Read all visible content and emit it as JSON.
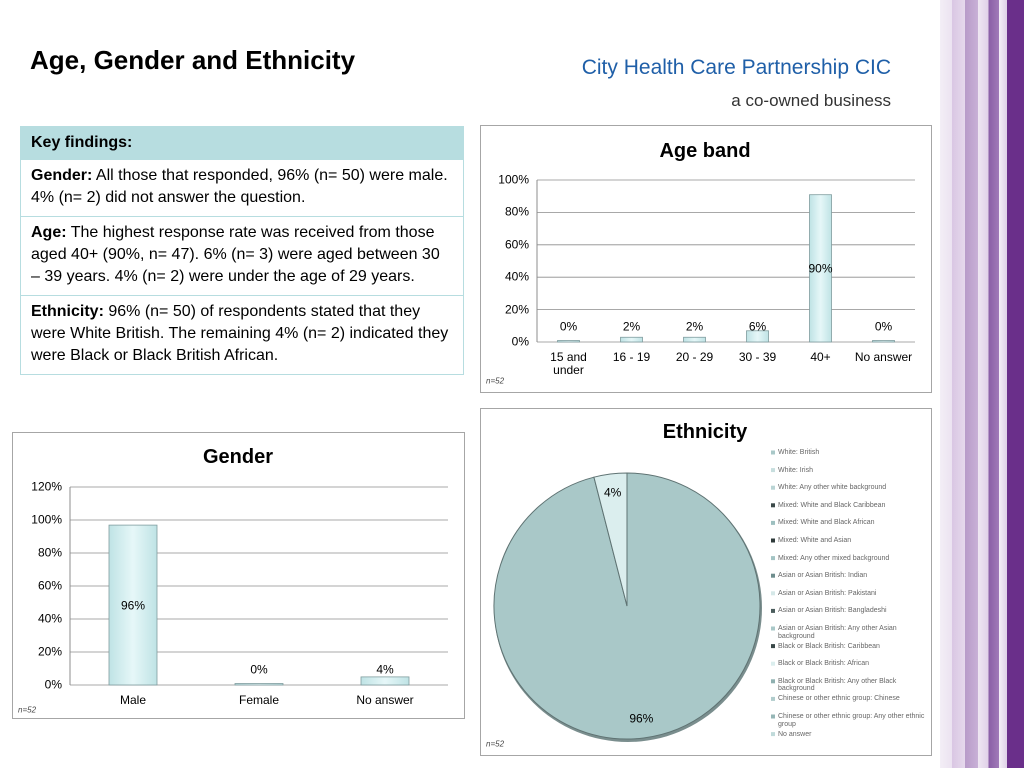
{
  "header": {
    "title": "Age, Gender and Ethnicity",
    "organisation": "City Health Care Partnership CIC",
    "tagline": "a co-owned business"
  },
  "findings": {
    "heading": "Key findings:",
    "items": [
      {
        "label": "Gender:",
        "text": "All those that responded, 96% (n= 50) were male.  4% (n= 2) did not answer the question."
      },
      {
        "label": "Age:",
        "text": "The highest response rate was received from those aged 40+ (90%, n= 47). 6% (n= 3) were aged between 30 – 39 years.  4% (n= 2) were under the age of 29 years."
      },
      {
        "label": "Ethnicity:",
        "text": "96% (n= 50) of respondents stated that they were White British.  The remaining 4% (n= 2) indicated they were Black or Black British African."
      }
    ]
  },
  "chart_data": [
    {
      "type": "bar",
      "title": "Age band",
      "note": "n=52",
      "categories": [
        "15 and under",
        "16 - 19",
        "20 - 29",
        "30 - 39",
        "40+",
        "No answer"
      ],
      "values": [
        0,
        2,
        2,
        6,
        90,
        0
      ],
      "value_labels": [
        "0%",
        "2%",
        "2%",
        "6%",
        "90%",
        "0%"
      ],
      "color": "#d3eff0",
      "ylim": [
        0,
        100
      ],
      "yticks": [
        {
          "value": 0,
          "label": "0%"
        },
        {
          "value": 20,
          "label": "20%"
        },
        {
          "value": 40,
          "label": "40%"
        },
        {
          "value": 60,
          "label": "60%"
        },
        {
          "value": 80,
          "label": "80%"
        },
        {
          "value": 100,
          "label": "100%"
        }
      ],
      "grid": true
    },
    {
      "type": "bar",
      "title": "Gender",
      "note": "n=52",
      "categories": [
        "Male",
        "Female",
        "No answer"
      ],
      "values": [
        96,
        0,
        4
      ],
      "value_labels": [
        "96%",
        "0%",
        "4%"
      ],
      "color": "#d3eff0",
      "ylim": [
        0,
        120
      ],
      "yticks": [
        {
          "value": 0,
          "label": "0%"
        },
        {
          "value": 20,
          "label": "20%"
        },
        {
          "value": 40,
          "label": "40%"
        },
        {
          "value": 60,
          "label": "60%"
        },
        {
          "value": 80,
          "label": "80%"
        },
        {
          "value": 100,
          "label": "100%"
        },
        {
          "value": 120,
          "label": "120%"
        }
      ],
      "grid": true
    },
    {
      "type": "pie",
      "title": "Ethnicity",
      "note": "n=52",
      "categories": [
        "White: British",
        "White: Irish",
        "White: Any other white background",
        "Mixed: White and Black Caribbean",
        "Mixed: White and Black African",
        "Mixed: White and Asian",
        "Mixed: Any other mixed background",
        "Asian or Asian British: Indian",
        "Asian or Asian British: Pakistani",
        "Asian or Asian British: Bangladeshi",
        "Asian or Asian British: Any other Asian background",
        "Black or Black British: Caribbean",
        "Black or Black British: African",
        "Black or Black British: Any other Black background",
        "Chinese or other ethnic group: Chinese",
        "Chinese or other ethnic group: Any other ethnic group",
        "No answer"
      ],
      "values": [
        96,
        0,
        0,
        0,
        0,
        0,
        0,
        0,
        0,
        0,
        0,
        0,
        4,
        0,
        0,
        0,
        0
      ],
      "value_labels": [
        "96%",
        null,
        null,
        null,
        null,
        null,
        null,
        null,
        null,
        null,
        null,
        null,
        "4%",
        null,
        null,
        null,
        null
      ],
      "colors": [
        "#a9c8c8",
        "#c7dede",
        "#b9d4d4",
        "#3c4a4a",
        "#9ec0c0",
        "#2e3a3a",
        "#a3c4c4",
        "#6f8e8e",
        "#d5e8e8",
        "#4a5c5c",
        "#a9c8c8",
        "#3a4848",
        "#dbeeee",
        "#8fb0b0",
        "#b0cccc",
        "#95b6b6",
        "#c0dada"
      ],
      "legend": "right"
    }
  ]
}
